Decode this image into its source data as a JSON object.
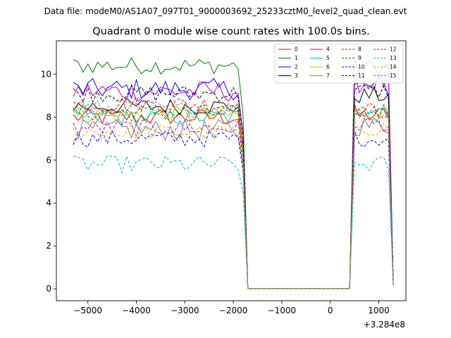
{
  "chart_data": {
    "type": "line",
    "suptitle": "Data file: modeM0/AS1A07_097T01_9000003692_25233cztM0_level2_quad_clean.evt",
    "title": "Quadrant 0 module wise count rates with 100.0s bins.",
    "xlabel": "",
    "ylabel": "",
    "x_offset_label": "+3.284e8",
    "xlim": [
      -5650,
      1560
    ],
    "ylim": [
      -0.55,
      11.55
    ],
    "x_ticks": [
      -5000,
      -4000,
      -3000,
      -2000,
      -1000,
      0,
      1000
    ],
    "x_tick_labels": [
      "−5000",
      "−4000",
      "−3000",
      "−2000",
      "−1000",
      "0",
      "1000"
    ],
    "y_ticks": [
      0,
      2,
      4,
      6,
      8,
      10
    ],
    "y_tick_labels": [
      "0",
      "2",
      "4",
      "6",
      "8",
      "10"
    ],
    "legend": {
      "position": "top-right",
      "columns": 4
    },
    "x_groups": {
      "seg1": [
        -5300,
        -5200,
        -5100,
        -5000,
        -4900,
        -4800,
        -4700,
        -4600,
        -4500,
        -4400,
        -4300,
        -4200,
        -4100,
        -4000,
        -3900,
        -3800,
        -3700,
        -3600,
        -3500,
        -3400,
        -3300,
        -3200,
        -3100,
        -3000,
        -2900,
        -2800,
        -2700,
        -2600,
        -2500,
        -2400,
        -2300,
        -2200,
        -2100,
        -2000,
        -1900,
        -1800
      ],
      "gap": [
        -1700,
        400
      ],
      "seg2": [
        500,
        600,
        700,
        800,
        900,
        1000,
        1100,
        1200,
        1300
      ]
    },
    "series": [
      {
        "name": "0",
        "color": "#ff0000",
        "dash": "solid",
        "base": 8.0,
        "amp": 0.4,
        "post": 8.1,
        "end": 0.2
      },
      {
        "name": "1",
        "color": "#008000",
        "dash": "solid",
        "base": 10.4,
        "amp": 0.4,
        "post": 10.3,
        "end": 0.2
      },
      {
        "name": "2",
        "color": "#0000ff",
        "dash": "solid",
        "base": 9.3,
        "amp": 0.5,
        "post": 9.4,
        "end": 0.2
      },
      {
        "name": "3",
        "color": "#000000",
        "dash": "solid",
        "base": 8.5,
        "amp": 0.4,
        "post": 9.0,
        "end": 0.2
      },
      {
        "name": "4",
        "color": "#c000c0",
        "dash": "solid",
        "base": 9.2,
        "amp": 0.5,
        "post": 9.6,
        "end": 0.2
      },
      {
        "name": "5",
        "color": "#00bfbf",
        "dash": "solid",
        "base": 8.0,
        "amp": 0.4,
        "post": 8.4,
        "end": 0.2
      },
      {
        "name": "6",
        "color": "#bfbf00",
        "dash": "solid",
        "base": 8.1,
        "amp": 0.4,
        "post": 8.2,
        "end": 0.2
      },
      {
        "name": "7",
        "color": "#808080",
        "dash": "solid",
        "base": 7.4,
        "amp": 0.5,
        "post": 7.6,
        "end": 0.2
      },
      {
        "name": "8",
        "color": "#ff0000",
        "dash": "dashed",
        "base": 8.6,
        "amp": 0.4,
        "post": 8.3,
        "end": 0.2
      },
      {
        "name": "9",
        "color": "#008000",
        "dash": "dashed",
        "base": 8.2,
        "amp": 0.4,
        "post": 8.3,
        "end": 0.2
      },
      {
        "name": "10",
        "color": "#0000ff",
        "dash": "dashed",
        "base": 7.0,
        "amp": 0.4,
        "post": 7.0,
        "end": 0.2
      },
      {
        "name": "11",
        "color": "#000000",
        "dash": "dashed",
        "base": 9.1,
        "amp": 0.4,
        "post": 9.2,
        "end": 0.2
      },
      {
        "name": "12",
        "color": "#c000c0",
        "dash": "dashed",
        "base": 7.5,
        "amp": 0.4,
        "post": 7.7,
        "end": 0.2
      },
      {
        "name": "13",
        "color": "#00bfbf",
        "dash": "dashed",
        "base": 5.8,
        "amp": 0.4,
        "post": 5.8,
        "end": 0.2
      },
      {
        "name": "14",
        "color": "#bfbf00",
        "dash": "dashed",
        "base": 7.3,
        "amp": 0.4,
        "post": 7.5,
        "end": 0.2
      },
      {
        "name": "15",
        "color": "#808080",
        "dash": "dashed",
        "base": 8.4,
        "amp": 0.4,
        "post": 8.3,
        "end": 0.2
      }
    ]
  }
}
